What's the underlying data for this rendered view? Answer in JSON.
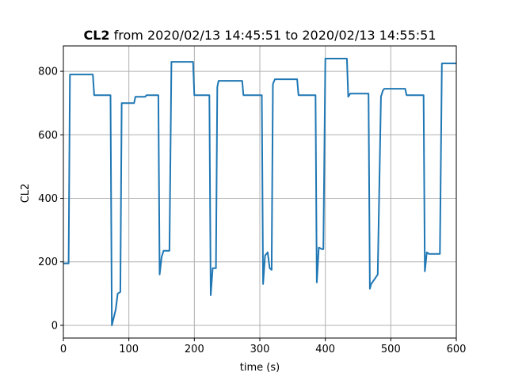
{
  "chart_data": {
    "type": "line",
    "title": {
      "bold": "CL2",
      "rest": " from 2020/02/13 14:45:51 to 2020/02/13 14:55:51"
    },
    "xlabel": "time (s)",
    "ylabel": "CL2",
    "xlim": [
      0,
      600
    ],
    "ylim": [
      -40,
      880
    ],
    "x_ticks": [
      0,
      100,
      200,
      300,
      400,
      500,
      600
    ],
    "y_ticks": [
      0,
      200,
      400,
      600,
      800
    ],
    "grid": true,
    "series": [
      {
        "color": "#1f77b4",
        "x": [
          0,
          8,
          10,
          45,
          47,
          72,
          74,
          80,
          83,
          87,
          89,
          92,
          108,
          110,
          125,
          127,
          145,
          147,
          150,
          153,
          162,
          165,
          198,
          200,
          223,
          225,
          228,
          233,
          235,
          237,
          240,
          245,
          273,
          275,
          303,
          305,
          308,
          312,
          315,
          318,
          320,
          323,
          357,
          359,
          385,
          387,
          390,
          395,
          397,
          400,
          433,
          435,
          438,
          455,
          466,
          468,
          470,
          475,
          480,
          485,
          488,
          490,
          495,
          522,
          524,
          550,
          552,
          555,
          558,
          575,
          578,
          600
        ],
        "y": [
          195,
          195,
          790,
          790,
          725,
          725,
          0,
          50,
          100,
          105,
          700,
          700,
          700,
          720,
          720,
          725,
          725,
          160,
          215,
          235,
          235,
          830,
          830,
          725,
          725,
          95,
          180,
          180,
          750,
          770,
          770,
          770,
          770,
          725,
          725,
          130,
          220,
          230,
          180,
          175,
          760,
          775,
          775,
          725,
          725,
          135,
          245,
          240,
          240,
          840,
          840,
          720,
          730,
          730,
          730,
          115,
          130,
          145,
          160,
          720,
          740,
          745,
          745,
          745,
          725,
          725,
          170,
          230,
          225,
          225,
          825,
          825
        ]
      }
    ]
  }
}
